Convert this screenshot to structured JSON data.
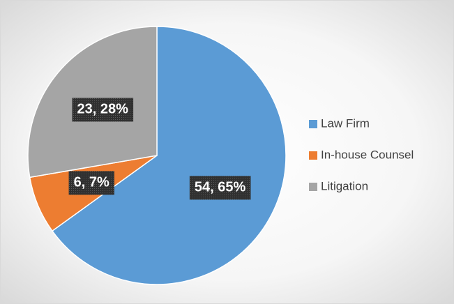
{
  "chart_data": {
    "type": "pie",
    "categories": [
      "Law Firm",
      "In-house Counsel",
      "Litigation"
    ],
    "values": [
      54,
      6,
      23
    ],
    "value_labels": [
      "54, 65%",
      "6, 7%",
      "23, 28%"
    ],
    "colors": [
      "#5b9bd5",
      "#ed7d31",
      "#a5a5a5"
    ],
    "legend": "right"
  }
}
